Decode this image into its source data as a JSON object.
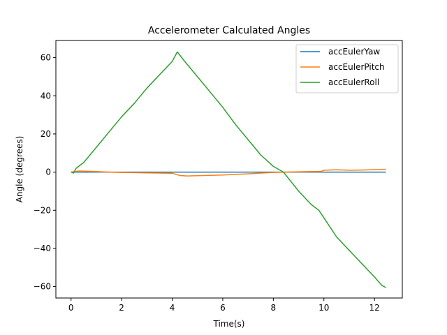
{
  "chart_data": {
    "type": "line",
    "title": "Accelerometer Calculated Angles",
    "xlabel": "Time(s)",
    "ylabel": "Angle (degrees)",
    "xlim": [
      -0.6,
      13.1
    ],
    "ylim": [
      -66,
      69
    ],
    "xticks": [
      0,
      2,
      4,
      6,
      8,
      10,
      12
    ],
    "yticks": [
      -60,
      -40,
      -20,
      0,
      20,
      40,
      60
    ],
    "legend_position": "top-right",
    "grid": false,
    "series": [
      {
        "name": "accEulerYaw",
        "color": "#1f77b4",
        "x": [
          0,
          2,
          4,
          6,
          8,
          10,
          12.45
        ],
        "y": [
          0,
          0,
          0,
          0,
          0,
          0,
          0
        ]
      },
      {
        "name": "accEulerPitch",
        "color": "#ff7f0e",
        "x": [
          0,
          0.3,
          0.6,
          1,
          1.5,
          2,
          2.5,
          3,
          3.5,
          4,
          4.3,
          4.6,
          5,
          5.5,
          6,
          6.5,
          7,
          7.5,
          8,
          8.5,
          9,
          9.5,
          9.9,
          10,
          10.5,
          11,
          11.5,
          12,
          12.45
        ],
        "y": [
          0,
          0.6,
          0.5,
          0.3,
          0,
          -0.2,
          -0.3,
          -0.4,
          -0.5,
          -0.6,
          -1.8,
          -2,
          -1.9,
          -1.7,
          -1.5,
          -1.2,
          -0.9,
          -0.5,
          -0.2,
          0,
          0.2,
          0.3,
          0.4,
          1,
          1.2,
          1,
          1.1,
          1.3,
          1.5
        ]
      },
      {
        "name": "accEulerRoll",
        "color": "#2ca02c",
        "x": [
          0,
          0.1,
          0.2,
          0.35,
          0.5,
          1,
          1.5,
          2,
          2.5,
          3,
          3.5,
          4,
          4.2,
          4.5,
          5,
          5.5,
          6,
          6.5,
          7,
          7.5,
          8,
          8.4,
          9,
          9.5,
          9.8,
          10,
          10.5,
          11,
          11.5,
          12,
          12.3,
          12.45
        ],
        "y": [
          0,
          -0.5,
          2,
          3.5,
          5,
          13,
          21,
          29,
          36,
          44,
          51,
          58,
          63,
          58,
          50,
          42,
          34,
          25,
          17,
          9,
          3,
          0,
          -10,
          -17,
          -20,
          -24,
          -34,
          -41,
          -48,
          -55,
          -59.5,
          -60.5
        ]
      }
    ]
  }
}
